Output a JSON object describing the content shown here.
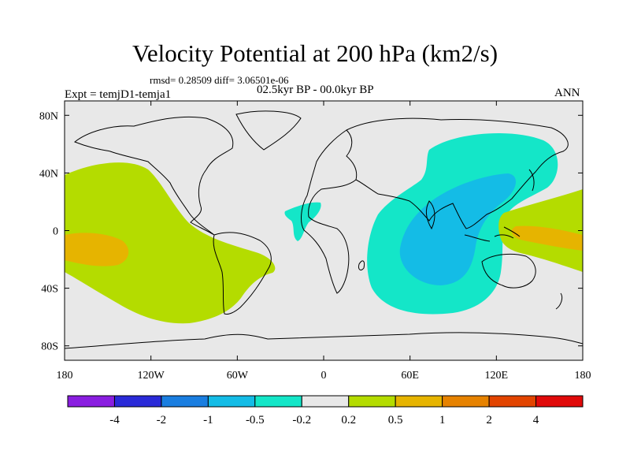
{
  "title": "Velocity Potential at 200 hPa (km2/s)",
  "stats": "rmsd= 0.28509 diff= 3.06501e-06",
  "experiment": "Expt = temjD1-temja1",
  "period": "02.5kyr BP - 00.0kyr BP",
  "season": "ANN",
  "map": {
    "lon_range": [
      -180,
      180
    ],
    "lat_range": [
      -90,
      90
    ],
    "land_color": "#e8e8e8",
    "x_ticks": [
      {
        "value": -180,
        "label": "180"
      },
      {
        "value": -120,
        "label": "120W"
      },
      {
        "value": -60,
        "label": "60W"
      },
      {
        "value": 0,
        "label": "0"
      },
      {
        "value": 60,
        "label": "60E"
      },
      {
        "value": 120,
        "label": "120E"
      },
      {
        "value": 180,
        "label": "180"
      }
    ],
    "y_ticks": [
      {
        "value": 80,
        "label": "80N"
      },
      {
        "value": 40,
        "label": "40N"
      },
      {
        "value": 0,
        "label": "0"
      },
      {
        "value": -40,
        "label": "40S"
      },
      {
        "value": -80,
        "label": "80S"
      }
    ]
  },
  "colorbar": {
    "colors": [
      "#8a1ee0",
      "#2a2ad8",
      "#1a7ee0",
      "#14bce6",
      "#14e6c8",
      "#e8e8e8",
      "#b4dc00",
      "#e6b400",
      "#e68200",
      "#e24400",
      "#e00a0a"
    ],
    "labels": [
      "-4",
      "-2",
      "-1",
      "-0.5",
      "-0.2",
      "0.2",
      "0.5",
      "1",
      "2",
      "4"
    ]
  }
}
